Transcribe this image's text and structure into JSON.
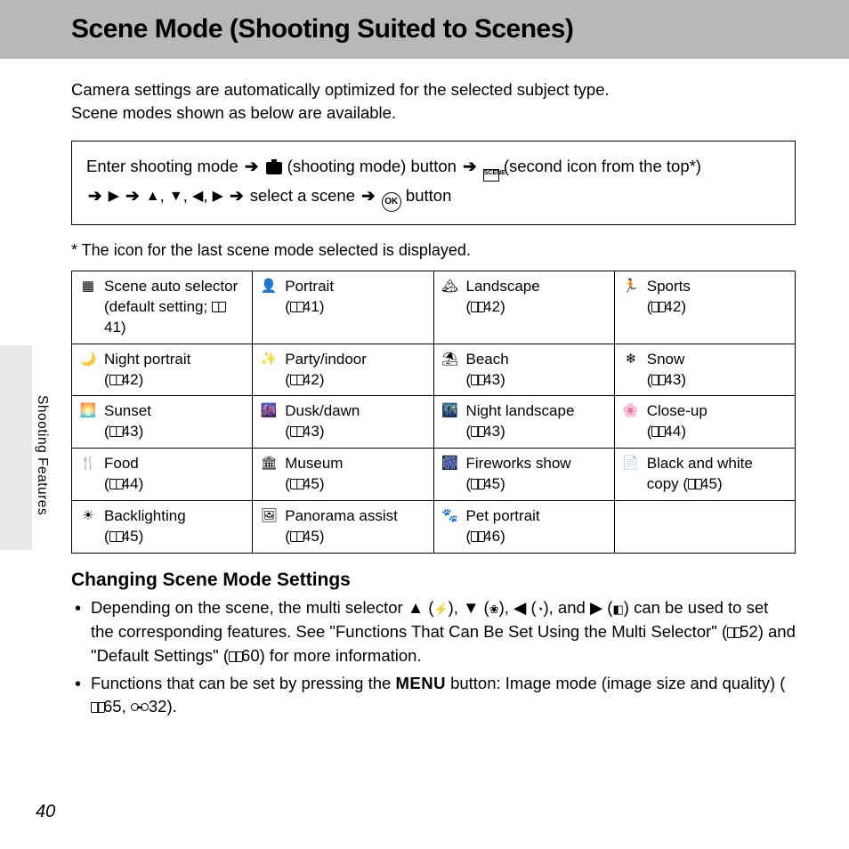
{
  "page_number": "40",
  "side_label": "Shooting Features",
  "title": "Scene Mode (Shooting Suited to Scenes)",
  "intro_line1": "Camera settings are automatically optimized for the selected subject type.",
  "intro_line2": "Scene modes shown as below are available.",
  "nav": {
    "part1": "Enter shooting mode",
    "part_btn": "(shooting mode) button",
    "part_second": "(second icon from the top*)",
    "select_scene": "select a scene",
    "button_word": "button"
  },
  "footnote": "*  The icon for the last scene mode selected is displayed.",
  "scenes": [
    [
      {
        "icon": "▦",
        "name": "Scene auto selector (default setting; ",
        "page": "41",
        "suffix": ")"
      },
      {
        "icon": "👤",
        "name": "Portrait",
        "page": "41",
        "newline": true
      },
      {
        "icon": "🏔",
        "name": "Landscape",
        "page": "42",
        "newline": true
      },
      {
        "icon": "🏃",
        "name": "Sports",
        "page": "42",
        "newline": true
      }
    ],
    [
      {
        "icon": "🌙",
        "name": "Night portrait",
        "page": "42",
        "newline": true
      },
      {
        "icon": "✨",
        "name": "Party/indoor",
        "page": "42",
        "newline": true
      },
      {
        "icon": "⛱",
        "name": "Beach",
        "page": "43",
        "newline": true
      },
      {
        "icon": "❄",
        "name": "Snow",
        "page": "43",
        "newline": true
      }
    ],
    [
      {
        "icon": "🌅",
        "name": "Sunset",
        "page": "43",
        "newline": true
      },
      {
        "icon": "🌆",
        "name": "Dusk/dawn",
        "page": "43",
        "newline": true
      },
      {
        "icon": "🌃",
        "name": "Night landscape",
        "page": "43",
        "newline": true
      },
      {
        "icon": "🌸",
        "name": "Close-up",
        "page": "44",
        "newline": true
      }
    ],
    [
      {
        "icon": "🍴",
        "name": "Food",
        "page": "44",
        "newline": true
      },
      {
        "icon": "🏛",
        "name": "Museum",
        "page": "45",
        "newline": true
      },
      {
        "icon": "🎆",
        "name": "Fireworks show",
        "page": "45",
        "newline": true
      },
      {
        "icon": "📄",
        "name": "Black and white copy (",
        "page": "45",
        "suffix": ")"
      }
    ],
    [
      {
        "icon": "☀",
        "name": "Backlighting",
        "page": "45",
        "newline": true
      },
      {
        "icon": "🖼",
        "name": "Panorama assist",
        "page": "45",
        "newline": true
      },
      {
        "icon": "🐾",
        "name": "Pet portrait",
        "page": "46",
        "newline": true
      },
      null
    ]
  ],
  "subhead": "Changing Scene Mode Settings",
  "bullet1": {
    "pre": "Depending on the scene, the multi selector ",
    "mid": " can be used to set the corresponding features. See \"Functions That Can Be Set Using the Multi Selector\" (",
    "p1": "52",
    "mid2": ") and \"Default Settings\" (",
    "p2": "60",
    "post": ") for more information."
  },
  "bullet2": {
    "pre": "Functions that can be set by pressing the ",
    "menu": "MENU",
    "mid": " button: Image mode (image size and quality) (",
    "p1": "65",
    "sep": ", ",
    "p2": "32",
    "post": ")."
  }
}
